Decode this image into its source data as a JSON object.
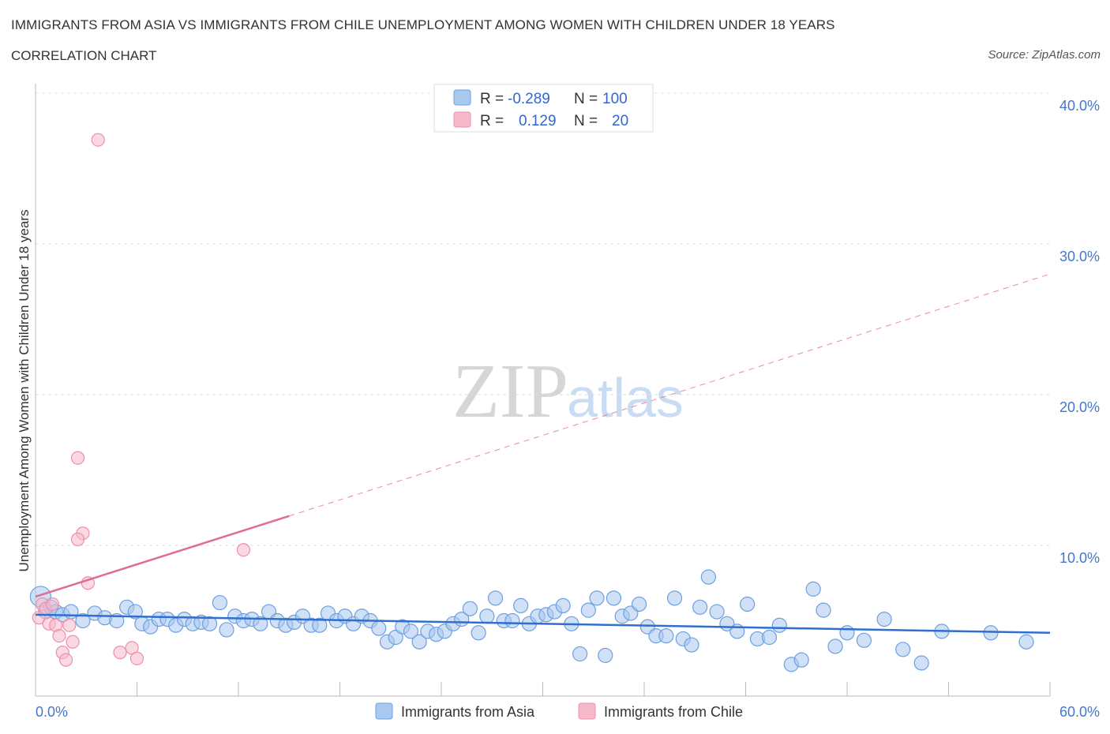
{
  "header": {
    "title": "IMMIGRANTS FROM ASIA VS IMMIGRANTS FROM CHILE UNEMPLOYMENT AMONG WOMEN WITH CHILDREN UNDER 18 YEARS",
    "subtitle": "CORRELATION CHART",
    "source": "Source: ZipAtlas.com"
  },
  "watermark": {
    "zip": "ZIP",
    "atlas": "atlas"
  },
  "legend": {
    "rows": [
      {
        "r_label": "R =",
        "r_value": "-0.289",
        "n_label": "N =",
        "n_value": "100",
        "color": "#a9c8f0"
      },
      {
        "r_label": "R =",
        "r_value": "0.129",
        "n_label": "N =",
        "n_value": "20",
        "color": "#f6b9cb"
      }
    ]
  },
  "chart_data": {
    "type": "scatter",
    "title": "IMMIGRANTS FROM ASIA VS IMMIGRANTS FROM CHILE UNEMPLOYMENT AMONG WOMEN WITH CHILDREN UNDER 18 YEARS",
    "xlabel": "",
    "ylabel": "Unemployment Among Women with Children Under 18 years",
    "xlim": [
      0,
      60
    ],
    "ylim": [
      0,
      40
    ],
    "x_tick_labels": [
      "0.0%",
      "60.0%"
    ],
    "y_ticks": [
      10,
      20,
      30,
      40
    ],
    "y_tick_labels": [
      "10.0%",
      "20.0%",
      "30.0%",
      "40.0%"
    ],
    "grid": true,
    "legend_position": "bottom",
    "series": [
      {
        "name": "Immigrants from Asia",
        "color": "#a9c8f0",
        "stroke": "#6d9fe0",
        "trend_color": "#2f6fd0",
        "trend": {
          "x0": 0,
          "y0": 5.4,
          "x1": 60,
          "y1": 4.2,
          "dashed_from": null
        },
        "points": [
          [
            0.3,
            6.6
          ],
          [
            0.6,
            5.6
          ],
          [
            0.9,
            5.9
          ],
          [
            1.2,
            5.6
          ],
          [
            1.6,
            5.4
          ],
          [
            2.1,
            5.6
          ],
          [
            2.8,
            5.0
          ],
          [
            3.5,
            5.5
          ],
          [
            4.1,
            5.2
          ],
          [
            4.8,
            5.0
          ],
          [
            5.4,
            5.9
          ],
          [
            5.9,
            5.6
          ],
          [
            6.3,
            4.8
          ],
          [
            6.8,
            4.6
          ],
          [
            7.3,
            5.1
          ],
          [
            7.8,
            5.1
          ],
          [
            8.3,
            4.7
          ],
          [
            8.8,
            5.1
          ],
          [
            9.3,
            4.8
          ],
          [
            9.8,
            4.9
          ],
          [
            10.3,
            4.8
          ],
          [
            10.9,
            6.2
          ],
          [
            11.3,
            4.4
          ],
          [
            11.8,
            5.3
          ],
          [
            12.3,
            5.0
          ],
          [
            12.8,
            5.1
          ],
          [
            13.3,
            4.8
          ],
          [
            13.8,
            5.6
          ],
          [
            14.3,
            5.0
          ],
          [
            14.8,
            4.7
          ],
          [
            15.3,
            4.9
          ],
          [
            15.8,
            5.3
          ],
          [
            16.3,
            4.7
          ],
          [
            16.8,
            4.7
          ],
          [
            17.3,
            5.5
          ],
          [
            17.8,
            5.0
          ],
          [
            18.3,
            5.3
          ],
          [
            18.8,
            4.8
          ],
          [
            19.3,
            5.3
          ],
          [
            19.8,
            5.0
          ],
          [
            20.3,
            4.5
          ],
          [
            20.8,
            3.6
          ],
          [
            21.3,
            3.9
          ],
          [
            21.7,
            4.6
          ],
          [
            22.2,
            4.3
          ],
          [
            22.7,
            3.6
          ],
          [
            23.2,
            4.3
          ],
          [
            23.7,
            4.1
          ],
          [
            24.2,
            4.3
          ],
          [
            24.7,
            4.8
          ],
          [
            25.2,
            5.1
          ],
          [
            25.7,
            5.8
          ],
          [
            26.2,
            4.2
          ],
          [
            26.7,
            5.3
          ],
          [
            27.2,
            6.5
          ],
          [
            27.7,
            5.0
          ],
          [
            28.2,
            5.0
          ],
          [
            28.7,
            6.0
          ],
          [
            29.2,
            4.8
          ],
          [
            29.7,
            5.3
          ],
          [
            30.2,
            5.4
          ],
          [
            30.7,
            5.6
          ],
          [
            31.2,
            6.0
          ],
          [
            31.7,
            4.8
          ],
          [
            32.2,
            2.8
          ],
          [
            32.7,
            5.7
          ],
          [
            33.2,
            6.5
          ],
          [
            33.7,
            2.7
          ],
          [
            34.2,
            6.5
          ],
          [
            34.7,
            5.3
          ],
          [
            35.2,
            5.5
          ],
          [
            35.7,
            6.1
          ],
          [
            36.2,
            4.6
          ],
          [
            36.7,
            4.0
          ],
          [
            37.3,
            4.0
          ],
          [
            37.8,
            6.5
          ],
          [
            38.3,
            3.8
          ],
          [
            38.8,
            3.4
          ],
          [
            39.3,
            5.9
          ],
          [
            39.8,
            7.9
          ],
          [
            40.3,
            5.6
          ],
          [
            40.9,
            4.8
          ],
          [
            41.5,
            4.3
          ],
          [
            42.1,
            6.1
          ],
          [
            42.7,
            3.8
          ],
          [
            43.4,
            3.9
          ],
          [
            44.0,
            4.7
          ],
          [
            44.7,
            2.1
          ],
          [
            45.3,
            2.4
          ],
          [
            46.0,
            7.1
          ],
          [
            46.6,
            5.7
          ],
          [
            47.3,
            3.3
          ],
          [
            48.0,
            4.2
          ],
          [
            49.0,
            3.7
          ],
          [
            50.2,
            5.1
          ],
          [
            51.3,
            3.1
          ],
          [
            52.4,
            2.2
          ],
          [
            53.6,
            4.3
          ],
          [
            56.5,
            4.2
          ],
          [
            58.6,
            3.6
          ]
        ]
      },
      {
        "name": "Immigrants from Chile",
        "color": "#f6b9cb",
        "stroke": "#ec8fab",
        "trend_color": "#e06b94",
        "trend": {
          "x0": 0,
          "y0": 6.6,
          "x1": 60,
          "y1": 28.0,
          "dashed_from": 15.0
        },
        "points": [
          [
            0.2,
            5.2
          ],
          [
            0.4,
            6.1
          ],
          [
            0.6,
            5.8
          ],
          [
            0.8,
            4.8
          ],
          [
            1.0,
            6.1
          ],
          [
            1.2,
            4.7
          ],
          [
            1.4,
            4.0
          ],
          [
            1.6,
            2.9
          ],
          [
            1.8,
            2.4
          ],
          [
            2.0,
            4.7
          ],
          [
            2.2,
            3.6
          ],
          [
            2.5,
            15.8
          ],
          [
            2.8,
            10.8
          ],
          [
            3.1,
            7.5
          ],
          [
            2.5,
            10.4
          ],
          [
            3.7,
            36.9
          ],
          [
            5.0,
            2.9
          ],
          [
            5.7,
            3.2
          ],
          [
            6.0,
            2.5
          ],
          [
            12.3,
            9.7
          ]
        ]
      }
    ]
  },
  "bottom_legend": {
    "items": [
      {
        "label": "Immigrants from Asia",
        "color": "#a9c8f0"
      },
      {
        "label": "Immigrants from Chile",
        "color": "#f6b9cb"
      }
    ]
  }
}
